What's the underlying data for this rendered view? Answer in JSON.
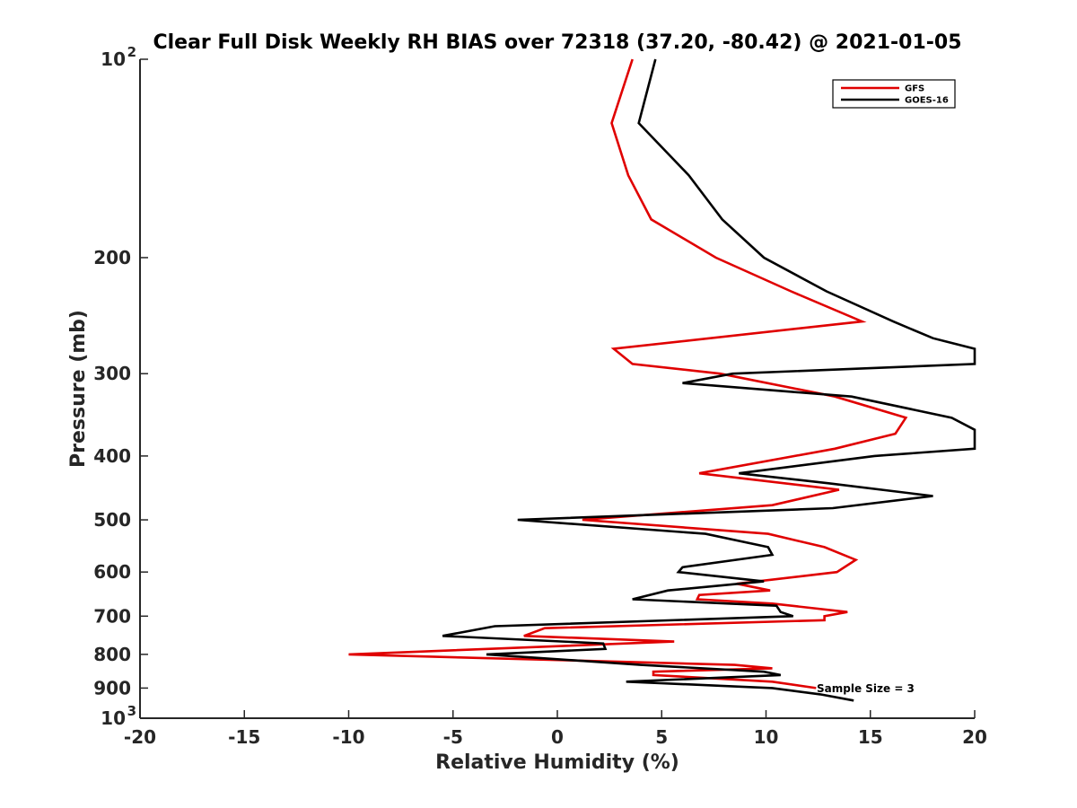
{
  "chart_data": {
    "type": "line",
    "title": "Clear Full Disk Weekly RH BIAS over 72318 (37.20, -80.42) @ 2021-01-05",
    "xlabel": "Relative Humidity (%)",
    "ylabel": "Pressure (mb)",
    "xlim": [
      -20,
      20
    ],
    "ylim": [
      100,
      1000
    ],
    "y_scale": "log",
    "y_reversed": true,
    "x_ticks": [
      "-20",
      "-15",
      "-10",
      "-5",
      "0",
      "5",
      "10",
      "15",
      "20"
    ],
    "y_ticks": [
      {
        "value": 100,
        "base": "10",
        "exp": "2"
      },
      {
        "value": 200,
        "base": "200",
        "exp": ""
      },
      {
        "value": 300,
        "base": "300",
        "exp": ""
      },
      {
        "value": 400,
        "base": "400",
        "exp": ""
      },
      {
        "value": 500,
        "base": "500",
        "exp": ""
      },
      {
        "value": 600,
        "base": "600",
        "exp": ""
      },
      {
        "value": 700,
        "base": "700",
        "exp": ""
      },
      {
        "value": 800,
        "base": "800",
        "exp": ""
      },
      {
        "value": 900,
        "base": "900",
        "exp": ""
      },
      {
        "value": 1000,
        "base": "10",
        "exp": "3"
      }
    ],
    "grid": false,
    "legend_position": "top-right",
    "annotation": "Sample Size = 3",
    "series": [
      {
        "name": "GFS",
        "color": "#e00000",
        "points": [
          [
            3.6,
            100
          ],
          [
            2.6,
            125
          ],
          [
            3.4,
            150
          ],
          [
            4.5,
            175
          ],
          [
            7.6,
            200
          ],
          [
            11.2,
            225
          ],
          [
            14.6,
            250
          ],
          [
            2.7,
            275
          ],
          [
            3.6,
            290
          ],
          [
            7.8,
            300
          ],
          [
            13.3,
            325
          ],
          [
            16.7,
            350
          ],
          [
            16.2,
            370
          ],
          [
            13.3,
            390
          ],
          [
            6.8,
            425
          ],
          [
            13.5,
            450
          ],
          [
            10.3,
            475
          ],
          [
            1.2,
            500
          ],
          [
            10.1,
            525
          ],
          [
            12.8,
            550
          ],
          [
            14.3,
            575
          ],
          [
            13.4,
            600
          ],
          [
            8.6,
            625
          ],
          [
            10.2,
            640
          ],
          [
            6.8,
            650
          ],
          [
            6.7,
            660
          ],
          [
            10.3,
            670
          ],
          [
            13.9,
            690
          ],
          [
            12.8,
            700
          ],
          [
            12.8,
            710
          ],
          [
            -0.6,
            730
          ],
          [
            -1.6,
            750
          ],
          [
            5.6,
            765
          ],
          [
            -10.0,
            800
          ],
          [
            8.5,
            830
          ],
          [
            10.3,
            840
          ],
          [
            4.6,
            850
          ],
          [
            4.6,
            860
          ],
          [
            10.3,
            880
          ],
          [
            12.4,
            900
          ]
        ]
      },
      {
        "name": "GOES-16",
        "color": "#000000",
        "points": [
          [
            4.7,
            100
          ],
          [
            3.9,
            125
          ],
          [
            6.3,
            150
          ],
          [
            7.9,
            175
          ],
          [
            9.9,
            200
          ],
          [
            12.9,
            225
          ],
          [
            16.1,
            250
          ],
          [
            18.0,
            265
          ],
          [
            20.0,
            275
          ],
          [
            20.0,
            290
          ],
          [
            8.4,
            300
          ],
          [
            6.0,
            310
          ],
          [
            14.1,
            325
          ],
          [
            18.9,
            350
          ],
          [
            20.0,
            365
          ],
          [
            20.0,
            390
          ],
          [
            15.2,
            400
          ],
          [
            8.7,
            425
          ],
          [
            13.0,
            440
          ],
          [
            18.0,
            460
          ],
          [
            13.2,
            480
          ],
          [
            -1.9,
            500
          ],
          [
            7.1,
            525
          ],
          [
            10.1,
            550
          ],
          [
            10.3,
            565
          ],
          [
            6.0,
            590
          ],
          [
            5.8,
            600
          ],
          [
            9.9,
            620
          ],
          [
            5.3,
            640
          ],
          [
            3.6,
            660
          ],
          [
            10.5,
            675
          ],
          [
            10.7,
            690
          ],
          [
            11.3,
            700
          ],
          [
            -3.0,
            725
          ],
          [
            -5.5,
            750
          ],
          [
            2.2,
            770
          ],
          [
            2.3,
            785
          ],
          [
            -3.4,
            800
          ],
          [
            4.0,
            830
          ],
          [
            9.9,
            850
          ],
          [
            10.7,
            860
          ],
          [
            3.3,
            880
          ],
          [
            10.3,
            900
          ],
          [
            12.6,
            920
          ],
          [
            14.2,
            940
          ]
        ]
      }
    ]
  }
}
